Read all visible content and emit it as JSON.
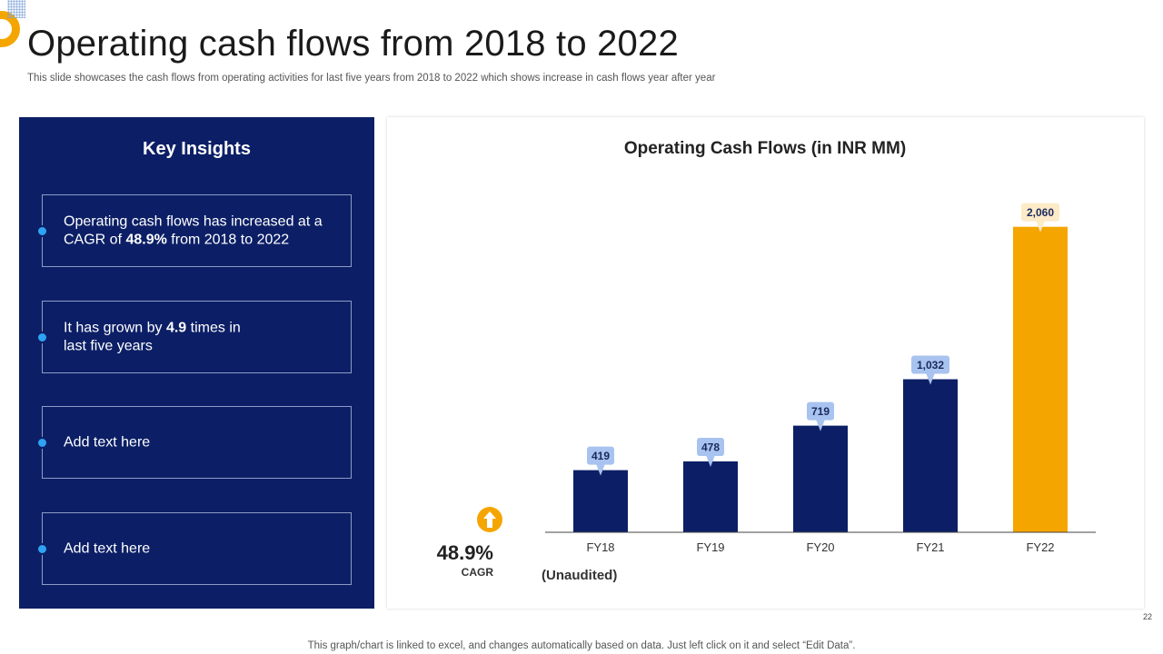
{
  "slide": {
    "title": "Operating cash flows from 2018 to 2022",
    "subtitle": "This slide showcases the cash flows from operating activities for last five years from 2018 to  2022 which shows increase in cash flows year after year",
    "footnote": "This graph/chart is linked to excel,  and changes automatically based on data. Just left click on it and select “Edit Data”.",
    "page_number": "22"
  },
  "insights": {
    "title": "Key Insights",
    "items": [
      {
        "pre": "Operating cash flows has increased at a CAGR of ",
        "bold": "48.9%",
        "post": " from 2018 to 2022"
      },
      {
        "pre": "It has grown by ",
        "bold": "4.9",
        "post": " times in last five years"
      },
      {
        "pre": "Add text here",
        "bold": "",
        "post": ""
      },
      {
        "pre": "Add text here",
        "bold": "",
        "post": ""
      }
    ]
  },
  "kpi": {
    "value": "48.9%",
    "label": "CAGR",
    "note": "(Unaudited)",
    "icon": "arrow-up-icon"
  },
  "colors": {
    "navy": "#0c1f66",
    "bar": "#0c1f66",
    "highlight": "#f5a500",
    "label_bg": "#a8c3ef",
    "label_bg_highlight": "#fdebc8",
    "dot": "#2ea3f2"
  },
  "chart_data": {
    "type": "bar",
    "title": "Operating Cash Flows (in INR MM)",
    "categories": [
      "FY18",
      "FY19",
      "FY20",
      "FY21",
      "FY22"
    ],
    "values": [
      419,
      478,
      719,
      1032,
      2060
    ],
    "value_labels": [
      "419",
      "478",
      "719",
      "1,032",
      "2,060"
    ],
    "highlight_index": 4,
    "xlabel": "",
    "ylabel": "",
    "ylim": [
      0,
      2450
    ],
    "grid": false,
    "legend": "none"
  }
}
